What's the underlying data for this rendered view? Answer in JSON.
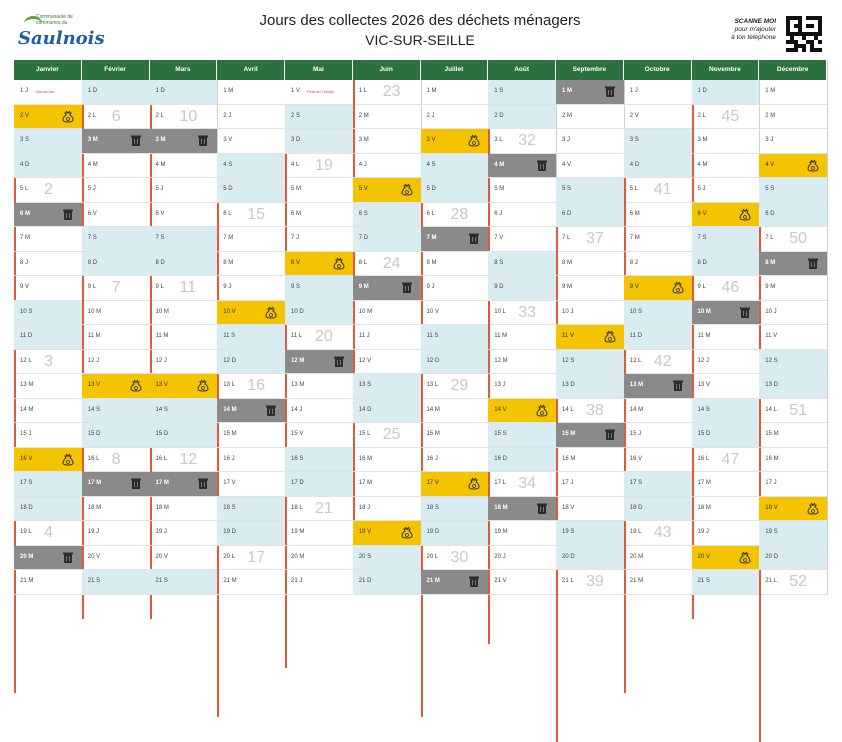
{
  "header": {
    "logo_text": "Saulnois",
    "logo_small": "Communauté de communes du",
    "title": "Jours des collectes 2026 des déchets ménagers",
    "subtitle": "VIC-SUR-SEILLE",
    "scan_title": "SCANNE MOI",
    "scan_l1": "pour m'ajouter",
    "scan_l2": "à ton téléphone"
  },
  "colors": {
    "header_green": "#2d7040",
    "weekend_blue": "#d8ecf2",
    "yellow_bag": "#f5c400",
    "grey_bin": "#8a8a8a",
    "week_line": "#e05a3a"
  },
  "months": [
    {
      "name": "Janvier",
      "days": [
        {
          "l": "1 J",
          "t": "hol",
          "note": "Nouvel An"
        },
        {
          "l": "2 V",
          "t": "y"
        },
        {
          "l": "3 S",
          "t": "w"
        },
        {
          "l": "4 D",
          "t": "w"
        },
        {
          "l": "5 L",
          "wk": "2"
        },
        {
          "l": "6 M",
          "t": "g"
        },
        {
          "l": "7 M"
        },
        {
          "l": "8 J"
        },
        {
          "l": "9 V"
        },
        {
          "l": "10 S",
          "t": "w"
        },
        {
          "l": "11 D",
          "t": "w"
        },
        {
          "l": "12 L",
          "wk": "3"
        },
        {
          "l": "13 M"
        },
        {
          "l": "14 M"
        },
        {
          "l": "15 J"
        },
        {
          "l": "16 V",
          "t": "y"
        },
        {
          "l": "17 S",
          "t": "w"
        },
        {
          "l": "18 D",
          "t": "w"
        },
        {
          "l": "19 L",
          "wk": "4"
        },
        {
          "l": "20 M",
          "t": "g"
        },
        {
          "l": "21 M"
        }
      ]
    },
    {
      "name": "Février",
      "days": [
        {
          "l": "1 D",
          "t": "w"
        },
        {
          "l": "2 L",
          "wk": "6"
        },
        {
          "l": "3 M",
          "t": "g"
        },
        {
          "l": "4 M"
        },
        {
          "l": "5 J"
        },
        {
          "l": "6 V"
        },
        {
          "l": "7 S",
          "t": "w"
        },
        {
          "l": "8 D",
          "t": "w"
        },
        {
          "l": "9 L",
          "wk": "7"
        },
        {
          "l": "10 M"
        },
        {
          "l": "11 M"
        },
        {
          "l": "12 J"
        },
        {
          "l": "13 V",
          "t": "y"
        },
        {
          "l": "14 S",
          "t": "w"
        },
        {
          "l": "15 D",
          "t": "w"
        },
        {
          "l": "16 L",
          "wk": "8"
        },
        {
          "l": "17 M",
          "t": "g"
        },
        {
          "l": "18 M"
        },
        {
          "l": "19 J"
        },
        {
          "l": "20 V"
        },
        {
          "l": "21 S",
          "t": "w"
        }
      ]
    },
    {
      "name": "Mars",
      "days": [
        {
          "l": "1 D",
          "t": "w"
        },
        {
          "l": "2 L",
          "wk": "10"
        },
        {
          "l": "3 M",
          "t": "g"
        },
        {
          "l": "4 M"
        },
        {
          "l": "5 J"
        },
        {
          "l": "6 V"
        },
        {
          "l": "7 S",
          "t": "w"
        },
        {
          "l": "8 D",
          "t": "w"
        },
        {
          "l": "9 L",
          "wk": "11"
        },
        {
          "l": "10 M"
        },
        {
          "l": "11 M"
        },
        {
          "l": "12 J"
        },
        {
          "l": "13 V",
          "t": "y"
        },
        {
          "l": "14 S",
          "t": "w"
        },
        {
          "l": "15 D",
          "t": "w"
        },
        {
          "l": "16 L",
          "wk": "12"
        },
        {
          "l": "17 M",
          "t": "g"
        },
        {
          "l": "18 M"
        },
        {
          "l": "19 J"
        },
        {
          "l": "20 V"
        },
        {
          "l": "21 S",
          "t": "w"
        }
      ]
    },
    {
      "name": "Avril",
      "days": [
        {
          "l": "1 M"
        },
        {
          "l": "2 J"
        },
        {
          "l": "3 V"
        },
        {
          "l": "4 S",
          "t": "w"
        },
        {
          "l": "5 D",
          "t": "w"
        },
        {
          "l": "6 L",
          "wk": "15"
        },
        {
          "l": "7 M"
        },
        {
          "l": "8 M"
        },
        {
          "l": "9 J"
        },
        {
          "l": "10 V",
          "t": "y"
        },
        {
          "l": "11 S",
          "t": "w"
        },
        {
          "l": "12 D",
          "t": "w"
        },
        {
          "l": "13 L",
          "wk": "16"
        },
        {
          "l": "14 M",
          "t": "g"
        },
        {
          "l": "15 M"
        },
        {
          "l": "16 J"
        },
        {
          "l": "17 V"
        },
        {
          "l": "18 S",
          "t": "w"
        },
        {
          "l": "19 D",
          "t": "w"
        },
        {
          "l": "20 L",
          "wk": "17"
        },
        {
          "l": "21 M"
        }
      ]
    },
    {
      "name": "Mai",
      "days": [
        {
          "l": "1 V",
          "t": "hol",
          "note": "Fête du Travail"
        },
        {
          "l": "2 S",
          "t": "w"
        },
        {
          "l": "3 D",
          "t": "w"
        },
        {
          "l": "4 L",
          "wk": "19"
        },
        {
          "l": "5 M"
        },
        {
          "l": "6 M"
        },
        {
          "l": "7 J"
        },
        {
          "l": "8 V",
          "t": "y"
        },
        {
          "l": "9 S",
          "t": "w"
        },
        {
          "l": "10 D",
          "t": "w"
        },
        {
          "l": "11 L",
          "wk": "20"
        },
        {
          "l": "12 M",
          "t": "g"
        },
        {
          "l": "13 M"
        },
        {
          "l": "14 J"
        },
        {
          "l": "15 V"
        },
        {
          "l": "16 S",
          "t": "w"
        },
        {
          "l": "17 D",
          "t": "w"
        },
        {
          "l": "18 L",
          "wk": "21"
        },
        {
          "l": "19 M"
        },
        {
          "l": "20 M"
        },
        {
          "l": "21 J"
        }
      ]
    },
    {
      "name": "Juin",
      "days": [
        {
          "l": "1 L",
          "wk": "23"
        },
        {
          "l": "2 M"
        },
        {
          "l": "3 M"
        },
        {
          "l": "4 J"
        },
        {
          "l": "5 V",
          "t": "y"
        },
        {
          "l": "6 S",
          "t": "w"
        },
        {
          "l": "7 D",
          "t": "w"
        },
        {
          "l": "8 L",
          "wk": "24"
        },
        {
          "l": "9 M",
          "t": "g"
        },
        {
          "l": "10 M"
        },
        {
          "l": "11 J"
        },
        {
          "l": "12 V"
        },
        {
          "l": "13 S",
          "t": "w"
        },
        {
          "l": "14 D",
          "t": "w"
        },
        {
          "l": "15 L",
          "wk": "25"
        },
        {
          "l": "16 M"
        },
        {
          "l": "17 M"
        },
        {
          "l": "18 J"
        },
        {
          "l": "19 V",
          "t": "y"
        },
        {
          "l": "20 S",
          "t": "w"
        },
        {
          "l": "21 D",
          "t": "w"
        }
      ]
    },
    {
      "name": "Juillet",
      "days": [
        {
          "l": "1 M"
        },
        {
          "l": "2 J"
        },
        {
          "l": "3 V",
          "t": "y"
        },
        {
          "l": "4 S",
          "t": "w"
        },
        {
          "l": "5 D",
          "t": "w"
        },
        {
          "l": "6 L",
          "wk": "28"
        },
        {
          "l": "7 M",
          "t": "g"
        },
        {
          "l": "8 M"
        },
        {
          "l": "9 J"
        },
        {
          "l": "10 V"
        },
        {
          "l": "11 S",
          "t": "w"
        },
        {
          "l": "12 D",
          "t": "w"
        },
        {
          "l": "13 L",
          "wk": "29"
        },
        {
          "l": "14 M"
        },
        {
          "l": "15 M"
        },
        {
          "l": "16 J"
        },
        {
          "l": "17 V",
          "t": "y"
        },
        {
          "l": "18 S",
          "t": "w"
        },
        {
          "l": "19 D",
          "t": "w"
        },
        {
          "l": "20 L",
          "wk": "30"
        },
        {
          "l": "21 M",
          "t": "g"
        }
      ]
    },
    {
      "name": "Août",
      "days": [
        {
          "l": "1 S",
          "t": "w"
        },
        {
          "l": "2 D",
          "t": "w"
        },
        {
          "l": "3 L",
          "wk": "32"
        },
        {
          "l": "4 M",
          "t": "g"
        },
        {
          "l": "5 M"
        },
        {
          "l": "6 J"
        },
        {
          "l": "7 V"
        },
        {
          "l": "8 S",
          "t": "w"
        },
        {
          "l": "9 D",
          "t": "w"
        },
        {
          "l": "10 L",
          "wk": "33"
        },
        {
          "l": "11 M"
        },
        {
          "l": "12 M"
        },
        {
          "l": "13 J"
        },
        {
          "l": "14 V",
          "t": "y"
        },
        {
          "l": "15 S",
          "t": "w"
        },
        {
          "l": "16 D",
          "t": "w"
        },
        {
          "l": "17 L",
          "wk": "34"
        },
        {
          "l": "18 M",
          "t": "g"
        },
        {
          "l": "19 M"
        },
        {
          "l": "20 J"
        },
        {
          "l": "21 V"
        }
      ]
    },
    {
      "name": "Septembre",
      "days": [
        {
          "l": "1 M",
          "t": "g"
        },
        {
          "l": "2 M"
        },
        {
          "l": "3 J"
        },
        {
          "l": "4 V"
        },
        {
          "l": "5 S",
          "t": "w"
        },
        {
          "l": "6 D",
          "t": "w"
        },
        {
          "l": "7 L",
          "wk": "37"
        },
        {
          "l": "8 M"
        },
        {
          "l": "9 M"
        },
        {
          "l": "10 J"
        },
        {
          "l": "11 V",
          "t": "y"
        },
        {
          "l": "12 S",
          "t": "w"
        },
        {
          "l": "13 D",
          "t": "w"
        },
        {
          "l": "14 L",
          "wk": "38"
        },
        {
          "l": "15 M",
          "t": "g"
        },
        {
          "l": "16 M"
        },
        {
          "l": "17 J"
        },
        {
          "l": "18 V"
        },
        {
          "l": "19 S",
          "t": "w"
        },
        {
          "l": "20 D",
          "t": "w"
        },
        {
          "l": "21 L",
          "wk": "39"
        }
      ]
    },
    {
      "name": "Octobre",
      "days": [
        {
          "l": "1 J"
        },
        {
          "l": "2 V"
        },
        {
          "l": "3 S",
          "t": "w"
        },
        {
          "l": "4 D",
          "t": "w"
        },
        {
          "l": "5 L",
          "wk": "41"
        },
        {
          "l": "6 M"
        },
        {
          "l": "7 M"
        },
        {
          "l": "8 J"
        },
        {
          "l": "9 V",
          "t": "y"
        },
        {
          "l": "10 S",
          "t": "w"
        },
        {
          "l": "11 D",
          "t": "w"
        },
        {
          "l": "12 L",
          "wk": "42"
        },
        {
          "l": "13 M",
          "t": "g"
        },
        {
          "l": "14 M"
        },
        {
          "l": "15 J"
        },
        {
          "l": "16 V"
        },
        {
          "l": "17 S",
          "t": "w"
        },
        {
          "l": "18 D",
          "t": "w"
        },
        {
          "l": "19 L",
          "wk": "43"
        },
        {
          "l": "20 M"
        },
        {
          "l": "21 M"
        }
      ]
    },
    {
      "name": "Novembre",
      "days": [
        {
          "l": "1 D",
          "t": "w"
        },
        {
          "l": "2 L",
          "wk": "45"
        },
        {
          "l": "3 M"
        },
        {
          "l": "4 M"
        },
        {
          "l": "5 J"
        },
        {
          "l": "6 V",
          "t": "y"
        },
        {
          "l": "7 S",
          "t": "w"
        },
        {
          "l": "8 D",
          "t": "w"
        },
        {
          "l": "9 L",
          "wk": "46"
        },
        {
          "l": "10 M",
          "t": "g"
        },
        {
          "l": "11 M"
        },
        {
          "l": "12 J"
        },
        {
          "l": "13 V"
        },
        {
          "l": "14 S",
          "t": "w"
        },
        {
          "l": "15 D",
          "t": "w"
        },
        {
          "l": "16 L",
          "wk": "47"
        },
        {
          "l": "17 M"
        },
        {
          "l": "18 M"
        },
        {
          "l": "19 J"
        },
        {
          "l": "20 V",
          "t": "y"
        },
        {
          "l": "21 S",
          "t": "w"
        }
      ]
    },
    {
      "name": "Décembre",
      "days": [
        {
          "l": "1 M"
        },
        {
          "l": "2 M"
        },
        {
          "l": "3 J"
        },
        {
          "l": "4 V",
          "t": "y"
        },
        {
          "l": "5 S",
          "t": "w"
        },
        {
          "l": "6 D",
          "t": "w"
        },
        {
          "l": "7 L",
          "wk": "50"
        },
        {
          "l": "8 M",
          "t": "g"
        },
        {
          "l": "9 M"
        },
        {
          "l": "10 J"
        },
        {
          "l": "11 V"
        },
        {
          "l": "12 S",
          "t": "w"
        },
        {
          "l": "13 D",
          "t": "w"
        },
        {
          "l": "14 L",
          "wk": "51"
        },
        {
          "l": "15 M"
        },
        {
          "l": "16 M"
        },
        {
          "l": "17 J"
        },
        {
          "l": "18 V",
          "t": "y"
        },
        {
          "l": "19 S",
          "t": "w"
        },
        {
          "l": "20 D",
          "t": "w"
        },
        {
          "l": "21 L",
          "wk": "52"
        }
      ]
    }
  ]
}
